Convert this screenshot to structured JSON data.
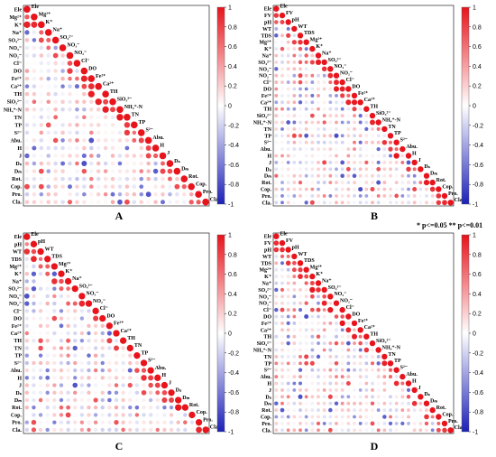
{
  "legend": {
    "significance_text": "* p<=0.05  ** p<=0.01"
  },
  "colorscale": {
    "ticks": [
      "1",
      "0.8",
      "0.6",
      "0.4",
      "0.2",
      "0",
      "-0.2",
      "-0.4",
      "-0.6",
      "-0.8",
      "-1"
    ],
    "high_color": "#e8131b",
    "mid_color": "#ffffff",
    "low_color": "#1c21b8"
  },
  "chart_data": [
    {
      "type": "heatmap",
      "title": "A",
      "variables": [
        "Ele",
        "Mg²⁺",
        "K⁺",
        "Na⁺",
        "SO₄²⁻",
        "NO₃⁻",
        "NO₂⁻",
        "Cl⁻",
        "DO",
        "Fe²⁺",
        "Ca²⁺",
        "TH",
        "SiO₃²⁻",
        "NH₄⁺-N",
        "TN",
        "TP",
        "S²⁻",
        "Abu.",
        "H",
        "J",
        "Dₛ",
        "Dₘ",
        "Rot.",
        "Cop.",
        "Pro.",
        "Cla."
      ],
      "value_range": [
        -1,
        1
      ],
      "note": "lower-triangular correlation matrix, circle size and color encode correlation coefficient"
    },
    {
      "type": "heatmap",
      "title": "B",
      "variables": [
        "Ele",
        "FV",
        "pH",
        "WT",
        "TDS",
        "Mg²⁺",
        "K⁺",
        "Na⁺",
        "SO₄²⁻",
        "NO₃⁻",
        "NO₂⁻",
        "Cl⁻",
        "DO",
        "Fe²⁺",
        "Ca²⁺",
        "TH",
        "SiO₃²⁻",
        "NH₄⁺-N",
        "TN",
        "TP",
        "S²⁻",
        "Abu.",
        "H",
        "J",
        "Dₛ",
        "Dₘ",
        "Rot.",
        "Cop.",
        "Pro.",
        "Cla."
      ],
      "value_range": [
        -1,
        1
      ]
    },
    {
      "type": "heatmap",
      "title": "C",
      "variables": [
        "Ele",
        "pH",
        "WT",
        "TDS",
        "Mg²⁺",
        "K⁺",
        "Na⁺",
        "SO₄²⁻",
        "NO₃⁻",
        "NO₂⁻",
        "Cl⁻",
        "DO",
        "Fe²⁺",
        "Ca²⁺",
        "TH",
        "TN",
        "TP",
        "S²⁻",
        "Abu.",
        "H",
        "J",
        "Dₛ",
        "Dₘ",
        "Rot.",
        "Cop.",
        "Pro.",
        "Cla."
      ],
      "value_range": [
        -1,
        1
      ]
    },
    {
      "type": "heatmap",
      "title": "D",
      "variables": [
        "Ele",
        "FV",
        "pH",
        "WT",
        "TDS",
        "Mg²⁺",
        "K⁺",
        "Na⁺",
        "SO₄²⁻",
        "NO₃⁻",
        "NO₂⁻",
        "Cl⁻",
        "DO",
        "Fe²⁺",
        "Ca²⁺",
        "TH",
        "SiO₃²⁻",
        "NH₄⁺-N",
        "TN",
        "TP",
        "S²⁻",
        "Abu.",
        "H",
        "J",
        "Dₛ",
        "Dₘ",
        "Rot.",
        "Cop.",
        "Pro.",
        "Cla."
      ],
      "value_range": [
        -1,
        1
      ]
    }
  ]
}
